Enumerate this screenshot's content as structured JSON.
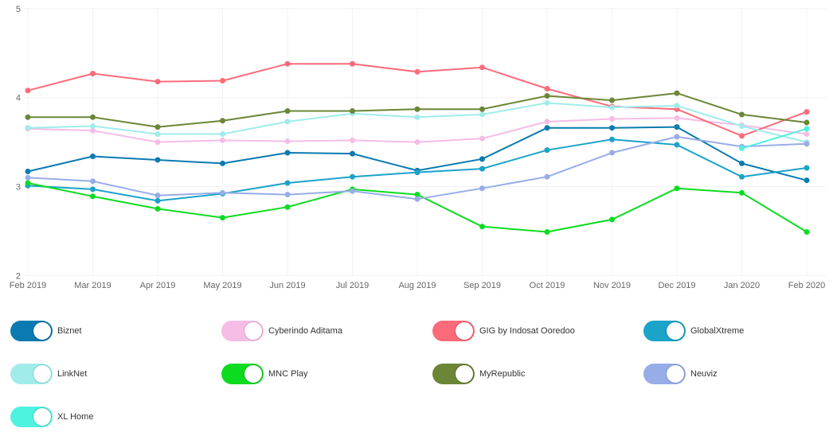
{
  "chart_data": {
    "type": "line",
    "title": "",
    "xlabel": "",
    "ylabel": "",
    "ylim": [
      2,
      5
    ],
    "yticks": [
      "2",
      "3",
      "4",
      "5"
    ],
    "grid": true,
    "legend_position": "bottom",
    "categories": [
      "Feb 2019",
      "Mar 2019",
      "Apr 2019",
      "May 2019",
      "Jun 2019",
      "Jul 2019",
      "Aug 2019",
      "Sep 2019",
      "Oct 2019",
      "Nov 2019",
      "Dec 2019",
      "Jan 2020",
      "Feb 2020"
    ],
    "series": [
      {
        "name": "Biznet",
        "color": "#0a7bb0",
        "knob_border": "#07618b",
        "values": [
          3.17,
          3.34,
          3.3,
          3.26,
          3.38,
          3.37,
          3.18,
          3.31,
          3.66,
          3.66,
          3.67,
          3.26,
          3.07
        ]
      },
      {
        "name": "Cyberindo Aditama",
        "color": "#f5bde6",
        "knob_border": "#d9a0c9",
        "values": [
          3.65,
          3.63,
          3.5,
          3.52,
          3.51,
          3.52,
          3.5,
          3.54,
          3.73,
          3.76,
          3.77,
          3.69,
          3.59
        ]
      },
      {
        "name": "GIG by Indosat Ooredoo",
        "color": "#fd6b7a",
        "knob_border": "#d9505e",
        "values": [
          4.08,
          4.27,
          4.18,
          4.19,
          4.38,
          4.38,
          4.29,
          4.34,
          4.1,
          3.9,
          3.87,
          3.57,
          3.84
        ]
      },
      {
        "name": "GlobalXtreme",
        "color": "#1ba3c9",
        "knob_border": "#1285a6",
        "values": [
          3.01,
          2.97,
          2.84,
          2.92,
          3.04,
          3.11,
          3.16,
          3.2,
          3.41,
          3.53,
          3.47,
          3.11,
          3.21
        ]
      },
      {
        "name": "LinkNet",
        "color": "#a0eceb",
        "knob_border": "#7fcfce",
        "values": [
          3.66,
          3.68,
          3.59,
          3.59,
          3.73,
          3.82,
          3.78,
          3.81,
          3.94,
          3.89,
          3.91,
          3.68,
          3.5
        ]
      },
      {
        "name": "MNC Play",
        "color": "#0cdc20",
        "knob_border": "#0ab51a",
        "values": [
          3.04,
          2.89,
          2.75,
          2.65,
          2.77,
          2.97,
          2.91,
          2.55,
          2.49,
          2.63,
          2.98,
          2.93,
          2.49
        ]
      },
      {
        "name": "MyRepublic",
        "color": "#6b8636",
        "knob_border": "#566c2b",
        "values": [
          3.78,
          3.78,
          3.67,
          3.74,
          3.85,
          3.85,
          3.87,
          3.87,
          4.02,
          3.97,
          4.05,
          3.81,
          3.72
        ]
      },
      {
        "name": "Neuviz",
        "color": "#97ade8",
        "knob_border": "#7a91cc",
        "values": [
          3.1,
          3.06,
          2.9,
          2.93,
          2.91,
          2.95,
          2.86,
          2.98,
          3.11,
          3.38,
          3.56,
          3.45,
          3.48
        ]
      },
      {
        "name": "XL Home",
        "color": "#4ef3e0",
        "knob_border": "#3bd0bf",
        "values": [
          null,
          null,
          null,
          null,
          null,
          null,
          null,
          null,
          null,
          null,
          null,
          3.43,
          3.65
        ]
      }
    ]
  },
  "legend": {
    "items": [
      {
        "label": "Biznet",
        "enabled": true
      },
      {
        "label": "Cyberindo Aditama",
        "enabled": true
      },
      {
        "label": "GIG by Indosat Ooredoo",
        "enabled": true
      },
      {
        "label": "GlobalXtreme",
        "enabled": true
      },
      {
        "label": "LinkNet",
        "enabled": true
      },
      {
        "label": "MNC Play",
        "enabled": true
      },
      {
        "label": "MyRepublic",
        "enabled": true
      },
      {
        "label": "Neuviz",
        "enabled": true
      },
      {
        "label": "XL Home",
        "enabled": true
      }
    ]
  }
}
